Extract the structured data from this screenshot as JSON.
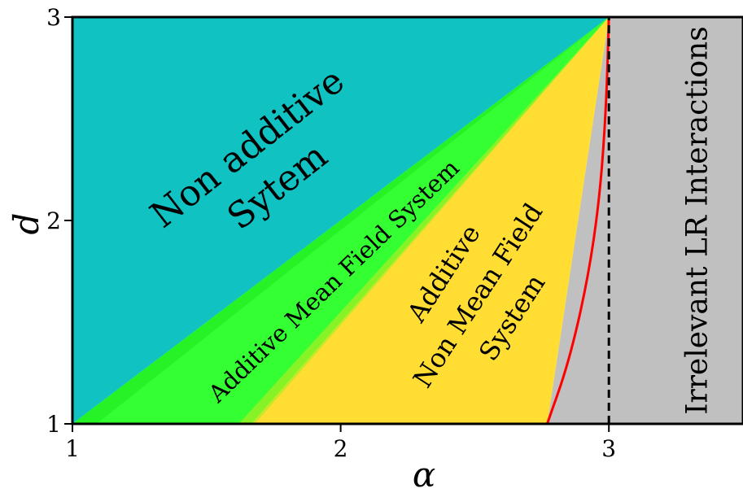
{
  "chart_data": {
    "type": "area",
    "xlabel": "α",
    "ylabel": "d",
    "xlim": [
      1,
      3.5
    ],
    "ylim": [
      1,
      3
    ],
    "x_ticks": [
      "1",
      "2",
      "3"
    ],
    "y_ticks": [
      "1",
      "2",
      "3"
    ],
    "grid": false,
    "colors": {
      "non_additive": "#11c2c2",
      "boundary_band": "#22f022",
      "additive_mean_field": "#33ff33",
      "additive_non_mean_field": "#ffdd33",
      "irrelevant": "#c0c0c0",
      "red_curve": "#ff0000"
    },
    "regions": [
      {
        "label_lines": [
          "Non additive",
          "Sytem"
        ],
        "polygon": [
          [
            1,
            1
          ],
          [
            3,
            3
          ],
          [
            1,
            3
          ]
        ]
      },
      {
        "label_lines": [
          "Additive Mean Field System"
        ],
        "polygon": [
          [
            1,
            1
          ],
          [
            1.667,
            1
          ],
          [
            3,
            3
          ]
        ]
      },
      {
        "label_lines": [
          "Additive",
          "Non Mean Field",
          "System"
        ],
        "polygon": [
          [
            1.667,
            1
          ],
          [
            2.77,
            1
          ],
          [
            3,
            3
          ]
        ]
      },
      {
        "label_lines": [
          "Irrelevant LR Interactions"
        ],
        "polygon": [
          [
            2.77,
            1
          ],
          [
            3.5,
            1
          ],
          [
            3.5,
            3
          ],
          [
            3,
            3
          ]
        ]
      }
    ],
    "red_curve": {
      "x": [
        2.77,
        2.85,
        2.92,
        2.965,
        2.99,
        3.0
      ],
      "y": [
        1.0,
        1.3,
        1.7,
        2.1,
        2.55,
        3.0
      ]
    },
    "dashed_line": {
      "x": 3,
      "y": [
        1,
        3
      ]
    }
  }
}
